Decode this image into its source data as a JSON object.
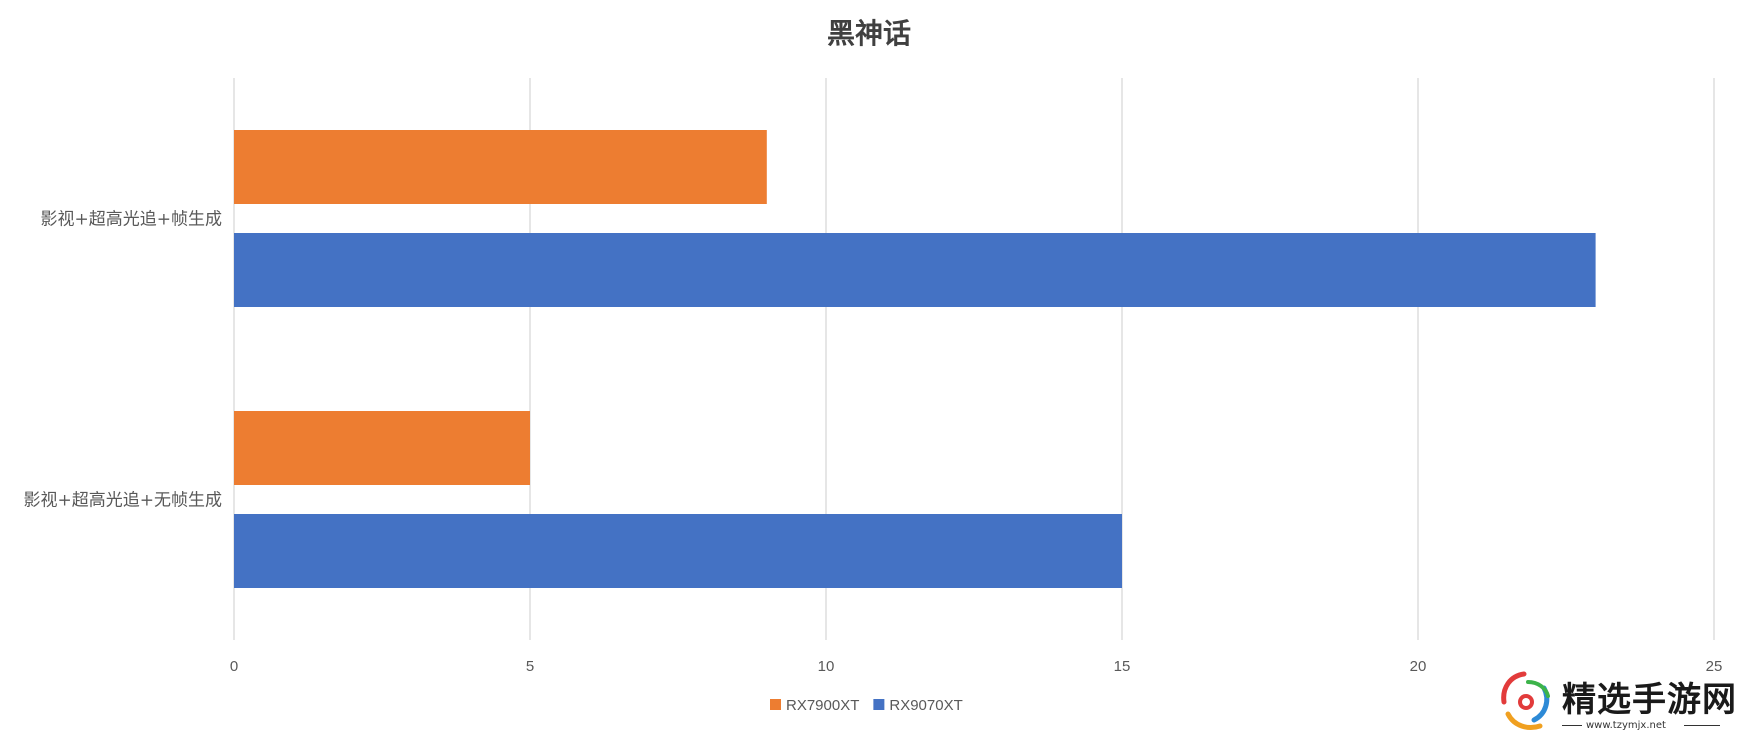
{
  "chart_data": {
    "type": "bar",
    "orientation": "horizontal",
    "title": "黑神话",
    "categories": [
      "影视+超高光追+帧生成",
      "影视+超高光追+无帧生成"
    ],
    "series": [
      {
        "name": "RX7900XT",
        "color": "#ED7D31",
        "values": [
          9,
          5
        ]
      },
      {
        "name": "RX9070XT",
        "color": "#4472C4",
        "values": [
          23,
          15
        ]
      }
    ],
    "xlim": [
      0,
      25
    ],
    "xticks": [
      0,
      5,
      10,
      15,
      20,
      25
    ],
    "xlabel": "",
    "ylabel": "",
    "grid": true,
    "legend_position": "bottom"
  },
  "watermark": {
    "text": "精选手游网",
    "url": "www.tzymjx.net"
  }
}
